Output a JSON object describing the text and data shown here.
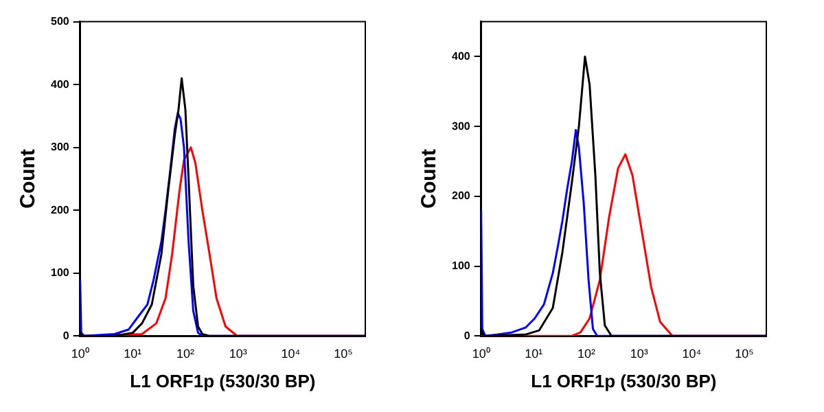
{
  "chart_data": [
    {
      "type": "line",
      "xlabel": "L1 ORF1p (530/30 BP)",
      "ylabel": "Count",
      "log": "x",
      "grid": false,
      "legend": false,
      "marker": "none",
      "xlim": [
        1,
        262144
      ],
      "ylim": [
        0,
        500
      ],
      "xticks": [
        {
          "value": 1,
          "label": "10⁰"
        },
        {
          "value": 10,
          "label": "10¹"
        },
        {
          "value": 100,
          "label": "10²"
        },
        {
          "value": 1000,
          "label": "10³"
        },
        {
          "value": 10000,
          "label": "10⁴"
        },
        {
          "value": 100000,
          "label": "10⁵"
        }
      ],
      "yticks": [
        0,
        100,
        200,
        300,
        400,
        500
      ],
      "series": [
        {
          "color": "#000000",
          "x": [
            1,
            1.1,
            4.5,
            10,
            15,
            23,
            35,
            47,
            63,
            74,
            85,
            100,
            115,
            141,
            174,
            210,
            280,
            262144
          ],
          "values": [
            5,
            0,
            0,
            5,
            20,
            50,
            130,
            230,
            320,
            360,
            410,
            360,
            250,
            80,
            15,
            3,
            0,
            0
          ]
        },
        {
          "color": "#0000ff",
          "x": [
            1,
            1.05,
            1.2,
            4.5,
            8.3,
            12.5,
            19,
            25,
            35,
            42,
            51,
            63,
            72,
            81,
            94,
            115,
            141,
            174,
            210,
            262144
          ],
          "values": [
            90,
            5,
            0,
            3,
            10,
            30,
            50,
            90,
            150,
            200,
            260,
            330,
            355,
            345,
            300,
            150,
            40,
            5,
            0,
            0
          ]
        },
        {
          "color": "#ff0000",
          "x": [
            1,
            15,
            28,
            42,
            56,
            77,
            94,
            127,
            155,
            210,
            288,
            390,
            580,
            960,
            262144
          ],
          "values": [
            0,
            3,
            20,
            60,
            130,
            230,
            280,
            300,
            275,
            200,
            130,
            60,
            15,
            0,
            0
          ]
        }
      ]
    },
    {
      "type": "line",
      "xlabel": "L1 ORF1p (530/30 BP)",
      "ylabel": "Count",
      "log": "x",
      "grid": false,
      "legend": false,
      "marker": "none",
      "xlim": [
        1,
        262144
      ],
      "ylim": [
        0,
        450
      ],
      "xticks": [
        {
          "value": 1,
          "label": "10⁰"
        },
        {
          "value": 10,
          "label": "10¹"
        },
        {
          "value": 100,
          "label": "10²"
        },
        {
          "value": 1000,
          "label": "10³"
        },
        {
          "value": 10000,
          "label": "10⁴"
        },
        {
          "value": 100000,
          "label": "10⁵"
        }
      ],
      "yticks": [
        0,
        100,
        200,
        300,
        400
      ],
      "series": [
        {
          "color": "#000000",
          "x": [
            1,
            1.1,
            7,
            12.7,
            23,
            35,
            53,
            72,
            94,
            115,
            148,
            180,
            224,
            300,
            262144
          ],
          "values": [
            10,
            0,
            2,
            8,
            40,
            120,
            220,
            300,
            400,
            360,
            230,
            90,
            15,
            0,
            0
          ]
        },
        {
          "color": "#0000ff",
          "x": [
            1,
            1.05,
            1.2,
            2,
            3.8,
            7,
            10.4,
            15.6,
            23,
            29,
            35,
            43,
            53,
            63,
            72,
            89,
            110,
            133,
            160,
            262144
          ],
          "values": [
            180,
            10,
            0,
            2,
            5,
            12,
            25,
            45,
            90,
            130,
            165,
            210,
            250,
            295,
            270,
            190,
            80,
            10,
            0,
            0
          ]
        },
        {
          "color": "#ff0000",
          "x": [
            1,
            53,
            77,
            115,
            180,
            270,
            400,
            550,
            750,
            1130,
            1700,
            2520,
            4300,
            262144
          ],
          "values": [
            0,
            0,
            5,
            25,
            80,
            170,
            240,
            260,
            230,
            150,
            70,
            20,
            0,
            0
          ]
        }
      ]
    }
  ]
}
